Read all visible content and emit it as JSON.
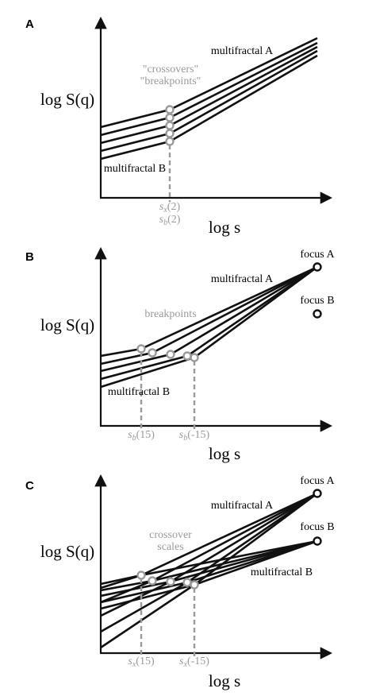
{
  "panels": [
    {
      "label": "A",
      "y_axis_label": "log S(q)",
      "x_axis_label": "log s",
      "annotations": {
        "curve_top": "multifractal A",
        "curve_bottom": "multifractal B",
        "note_line1": "\"crossovers\"",
        "note_line2": "\"breakpoints\""
      },
      "scale_labels": [
        {
          "symbol": "s",
          "sub": "x",
          "arg": "(2)"
        },
        {
          "symbol": "s",
          "sub": "b",
          "arg": "(2)"
        }
      ]
    },
    {
      "label": "B",
      "y_axis_label": "log S(q)",
      "x_axis_label": "log s",
      "annotations": {
        "curve_top": "multifractal A",
        "curve_bottom": "multifractal B",
        "note": "breakpoints",
        "focus_a": "focus A",
        "focus_b": "focus B"
      },
      "scale_labels": [
        {
          "symbol": "s",
          "sub": "b",
          "arg": "(15)"
        },
        {
          "symbol": "s",
          "sub": "b",
          "arg": "(-15)"
        }
      ]
    },
    {
      "label": "C",
      "y_axis_label": "log S(q)",
      "x_axis_label": "log s",
      "annotations": {
        "curve_top": "multifractal A",
        "curve_bottom": "multifractal B",
        "note_line1": "crossover",
        "note_line2": "scales",
        "focus_a": "focus A",
        "focus_b": "focus B"
      },
      "scale_labels": [
        {
          "symbol": "s",
          "sub": "x",
          "arg": "(15)"
        },
        {
          "symbol": "s",
          "sub": "x",
          "arg": "(-15)"
        }
      ]
    }
  ]
}
